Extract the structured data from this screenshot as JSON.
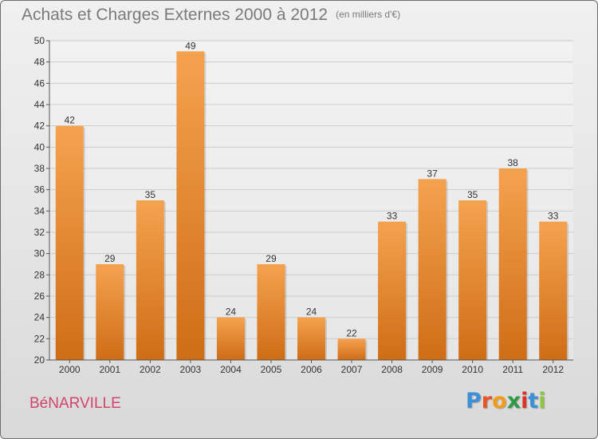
{
  "header": {
    "title": "Achats et Charges Externes 2000 à 2012",
    "subtitle": "(en milliers d'€)"
  },
  "footer": {
    "commune": "BéNARVILLE",
    "logo_letters": [
      "P",
      "r",
      "o",
      "x",
      "i",
      "t",
      "i"
    ],
    "logo_colors": [
      "#3d8fd6",
      "#e8542a",
      "#f39c1c",
      "#2e9a45",
      "#d9342b",
      "#3d8fd6",
      "#8cc63e"
    ]
  },
  "colors": {
    "bar_top": "#f5a24f",
    "bar_bottom": "#cf6d16",
    "axis_text": "#333333",
    "grid": "#cccccc",
    "commune": "#d2446e"
  },
  "chart_data": {
    "type": "bar",
    "title": "Achats et Charges Externes 2000 à 2012",
    "subtitle": "(en milliers d'€)",
    "categories": [
      "2000",
      "2001",
      "2002",
      "2003",
      "2004",
      "2005",
      "2006",
      "2007",
      "2008",
      "2009",
      "2010",
      "2011",
      "2012"
    ],
    "values": [
      42,
      29,
      35,
      49,
      24,
      29,
      24,
      22,
      33,
      37,
      35,
      38,
      33
    ],
    "ylim": [
      20,
      50
    ],
    "yticks": [
      20,
      22,
      24,
      26,
      28,
      30,
      32,
      34,
      36,
      38,
      40,
      42,
      44,
      46,
      48,
      50
    ],
    "grid": true,
    "data_labels": true
  }
}
